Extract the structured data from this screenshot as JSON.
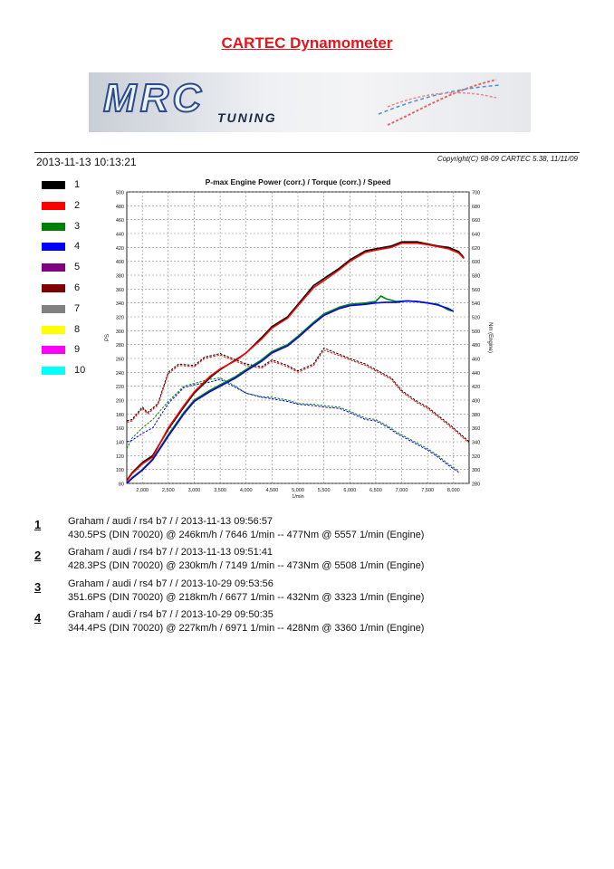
{
  "header": {
    "title": "CARTEC Dynamometer",
    "logo_main": "MRC",
    "logo_sub": "TUNING",
    "datetime": "2013-11-13 10:13:21",
    "copyright": "Copyright(C) 98-09 CARTEC 5.38, 11/11/09"
  },
  "legend": [
    {
      "label": "1",
      "color": "#000000"
    },
    {
      "label": "2",
      "color": "#ff0000"
    },
    {
      "label": "3",
      "color": "#008000"
    },
    {
      "label": "4",
      "color": "#0000ff"
    },
    {
      "label": "5",
      "color": "#800080"
    },
    {
      "label": "6",
      "color": "#800000"
    },
    {
      "label": "7",
      "color": "#808080"
    },
    {
      "label": "8",
      "color": "#ffff00"
    },
    {
      "label": "9",
      "color": "#ff00ff"
    },
    {
      "label": "10",
      "color": "#00ffff"
    }
  ],
  "chart_data": {
    "type": "line",
    "title": "P-max Engine Power (corr.) / Torque (corr.) / Speed",
    "xlabel": "1/min",
    "ylabel": "PS",
    "y2label": "Nm (Engine)",
    "xlim": [
      1700,
      8300
    ],
    "ylim": [
      80,
      500
    ],
    "y2lim": [
      280,
      700
    ],
    "xticks": [
      "2,000",
      "2,500",
      "3,000",
      "3,500",
      "4,000",
      "4,500",
      "5,000",
      "5,500",
      "6,000",
      "6,500",
      "7,000",
      "7,500",
      "8,000"
    ],
    "xtick_values": [
      2000,
      2500,
      3000,
      3500,
      4000,
      4500,
      5000,
      5500,
      6000,
      6500,
      7000,
      7500,
      8000
    ],
    "yticks": [
      80,
      100,
      120,
      140,
      160,
      180,
      200,
      220,
      240,
      260,
      280,
      300,
      320,
      340,
      360,
      380,
      400,
      420,
      440,
      460,
      480,
      500
    ],
    "y2ticks": [
      280,
      300,
      320,
      340,
      360,
      380,
      400,
      420,
      440,
      460,
      480,
      500,
      520,
      540,
      560,
      580,
      600,
      620,
      640,
      660,
      680,
      700
    ],
    "grid": true,
    "series": [
      {
        "name": "1",
        "kind": "power",
        "axis": "left",
        "color": "#000000",
        "dashed": false,
        "x": [
          1700,
          1800,
          2000,
          2200,
          2500,
          2800,
          3000,
          3300,
          3500,
          3800,
          4000,
          4300,
          4500,
          4800,
          5000,
          5300,
          5500,
          5800,
          6000,
          6300,
          6500,
          6800,
          7000,
          7300,
          7500,
          7700,
          7900,
          8100,
          8200
        ],
        "y": [
          84,
          95,
          110,
          120,
          158,
          190,
          210,
          232,
          244,
          258,
          268,
          290,
          306,
          320,
          338,
          365,
          375,
          390,
          402,
          415,
          418,
          422,
          428,
          428,
          425,
          422,
          420,
          414,
          405
        ]
      },
      {
        "name": "2",
        "kind": "power",
        "axis": "left",
        "color": "#ff0000",
        "dashed": false,
        "x": [
          1700,
          1800,
          2000,
          2200,
          2500,
          2800,
          3000,
          3300,
          3500,
          3800,
          4000,
          4300,
          4500,
          4800,
          5000,
          5300,
          5500,
          5800,
          6000,
          6300,
          6500,
          6800,
          7000,
          7300,
          7500,
          7700,
          7900,
          8100,
          8200
        ],
        "y": [
          83,
          94,
          108,
          118,
          160,
          192,
          212,
          234,
          245,
          257,
          268,
          288,
          304,
          318,
          336,
          362,
          372,
          388,
          400,
          413,
          416,
          420,
          426,
          426,
          424,
          421,
          418,
          412,
          404
        ]
      },
      {
        "name": "3",
        "kind": "power",
        "axis": "left",
        "color": "#008000",
        "dashed": false,
        "x": [
          1700,
          1800,
          2000,
          2200,
          2500,
          2800,
          3000,
          3300,
          3500,
          3800,
          4000,
          4300,
          4500,
          4800,
          5000,
          5300,
          5500,
          5800,
          6000,
          6300,
          6500,
          6600,
          6700,
          6900,
          7100,
          7300,
          7500,
          7700,
          7900,
          8000
        ],
        "y": [
          80,
          88,
          100,
          115,
          150,
          182,
          200,
          214,
          222,
          234,
          244,
          258,
          270,
          280,
          292,
          312,
          324,
          334,
          338,
          340,
          342,
          350,
          346,
          342,
          343,
          342,
          340,
          338,
          330,
          328
        ]
      },
      {
        "name": "4",
        "kind": "power",
        "axis": "left",
        "color": "#0000ff",
        "dashed": false,
        "x": [
          1700,
          1800,
          2000,
          2200,
          2500,
          2800,
          3000,
          3300,
          3500,
          3800,
          4000,
          4300,
          4500,
          4800,
          5000,
          5300,
          5500,
          5800,
          6000,
          6300,
          6500,
          6700,
          6900,
          7100,
          7300,
          7500,
          7700,
          7900,
          8000
        ],
        "y": [
          80,
          87,
          99,
          114,
          148,
          180,
          198,
          212,
          220,
          232,
          242,
          256,
          268,
          278,
          290,
          310,
          322,
          332,
          336,
          338,
          340,
          341,
          341,
          343,
          342,
          340,
          337,
          332,
          328
        ]
      },
      {
        "name": "1",
        "kind": "torque",
        "axis": "right",
        "color": "#000000",
        "dashed": true,
        "x": [
          1700,
          1800,
          2000,
          2100,
          2300,
          2500,
          2700,
          3000,
          3200,
          3500,
          3800,
          4000,
          4300,
          4500,
          4800,
          5000,
          5300,
          5500,
          5800,
          6000,
          6300,
          6500,
          6800,
          7000,
          7300,
          7500,
          7800,
          8000,
          8300
        ],
        "y": [
          370,
          372,
          390,
          382,
          395,
          440,
          452,
          450,
          462,
          467,
          458,
          452,
          448,
          458,
          450,
          442,
          452,
          475,
          466,
          460,
          452,
          444,
          432,
          414,
          398,
          390,
          372,
          360,
          340
        ]
      },
      {
        "name": "2",
        "kind": "torque",
        "axis": "right",
        "color": "#ff0000",
        "dashed": true,
        "x": [
          1700,
          1800,
          2000,
          2100,
          2300,
          2500,
          2700,
          3000,
          3200,
          3500,
          3800,
          4000,
          4300,
          4500,
          4800,
          5000,
          5300,
          5500,
          5800,
          6000,
          6300,
          6500,
          6800,
          7000,
          7300,
          7500,
          7800,
          8000,
          8300
        ],
        "y": [
          368,
          370,
          388,
          380,
          393,
          438,
          450,
          448,
          460,
          465,
          456,
          450,
          446,
          456,
          448,
          440,
          450,
          472,
          464,
          458,
          450,
          442,
          430,
          412,
          396,
          388,
          370,
          358,
          338
        ]
      },
      {
        "name": "3",
        "kind": "torque",
        "axis": "right",
        "color": "#008000",
        "dashed": true,
        "x": [
          1700,
          1800,
          2000,
          2200,
          2500,
          2800,
          3000,
          3300,
          3500,
          3800,
          4000,
          4300,
          4500,
          4800,
          5000,
          5300,
          5500,
          5800,
          6000,
          6300,
          6500,
          6700,
          6900,
          7100,
          7300,
          7500,
          7700,
          7900,
          8100
        ],
        "y": [
          330,
          345,
          360,
          372,
          398,
          420,
          424,
          430,
          432,
          420,
          410,
          405,
          404,
          400,
          395,
          394,
          392,
          390,
          384,
          374,
          372,
          364,
          354,
          346,
          338,
          330,
          320,
          308,
          298
        ]
      },
      {
        "name": "4",
        "kind": "torque",
        "axis": "right",
        "color": "#0000ff",
        "dashed": true,
        "x": [
          1700,
          1800,
          2000,
          2200,
          2500,
          2800,
          3000,
          3300,
          3500,
          3800,
          4000,
          4300,
          4500,
          4800,
          5000,
          5300,
          5500,
          5800,
          6000,
          6300,
          6500,
          6700,
          6900,
          7100,
          7300,
          7500,
          7700,
          7900,
          8100
        ],
        "y": [
          340,
          342,
          352,
          360,
          395,
          418,
          422,
          426,
          430,
          418,
          410,
          404,
          402,
          398,
          394,
          392,
          390,
          388,
          382,
          372,
          370,
          362,
          352,
          344,
          336,
          328,
          318,
          306,
          296
        ]
      }
    ]
  },
  "runs": [
    {
      "num": "1",
      "line1": "Graham / audi / rs4 b7 /  / 2013-11-13 09:56:57",
      "line2": "430.5PS (DIN 70020) @ 246km/h / 7646 1/min -- 477Nm @ 5557 1/min (Engine)"
    },
    {
      "num": "2",
      "line1": "Graham / audi / rs4 b7 /  / 2013-11-13 09:51:41",
      "line2": "428.3PS (DIN 70020) @ 230km/h / 7149 1/min -- 473Nm @ 5508 1/min (Engine)"
    },
    {
      "num": "3",
      "line1": "Graham / audi / rs4 b7 /  / 2013-10-29 09:53:56",
      "line2": "351.6PS (DIN 70020) @ 218km/h / 6677 1/min -- 432Nm @ 3323 1/min (Engine)"
    },
    {
      "num": "4",
      "line1": "Graham / audi / rs4 b7 /  / 2013-10-29 09:50:35",
      "line2": "344.4PS (DIN 70020) @ 227km/h / 6971 1/min -- 428Nm @ 3360 1/min (Engine)"
    }
  ]
}
